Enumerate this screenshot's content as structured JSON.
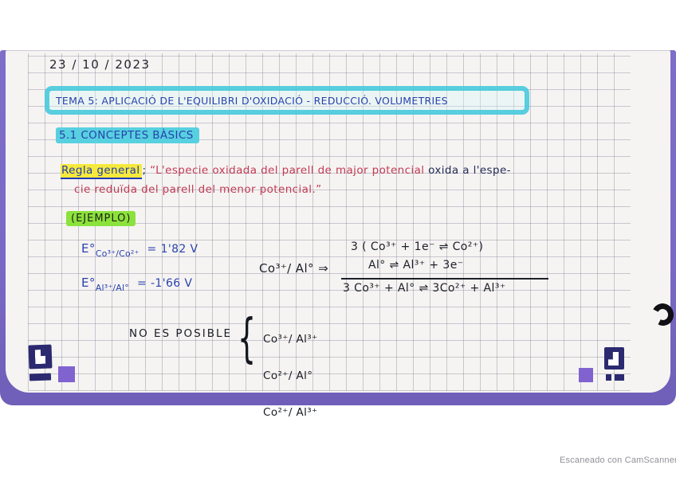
{
  "scan": {
    "date": "23 / 10 / 2023",
    "title": "TEMA 5: APLICACIÓ DE L'EQUILIBRI D'OXIDACIÓ - REDUCCIÓ. VOLUMETRIES",
    "section": "5.1 CONCEPTES BÀSICS",
    "rule": {
      "label": "Regla general",
      "separator": "; ",
      "quote_line1_red": "“L'especie oxidada del parell de major potencial ",
      "quote_line1_dark": "oxida a l'espe-",
      "quote_line2": "cie reduïda del parell del menor potencial.”"
    },
    "example_label": "(EJEMPLO)",
    "potentials": [
      {
        "prefix": "E°",
        "couple": "Co³⁺/Co²⁺",
        "value": "= 1'82 V"
      },
      {
        "prefix": "E°",
        "couple": "Al³⁺/Al°",
        "value": "= -1'66 V"
      }
    ],
    "reaction": {
      "couple": "Co³⁺/ Al° ⇒",
      "half1": "3 ( Co³⁺ + 1e⁻  ⇌  Co²⁺)",
      "half2": "Al°  ⇌  Al³⁺ + 3e⁻",
      "overall": "3 Co³⁺ + Al° ⇌ 3Co²⁺ + Al³⁺"
    },
    "not_possible": {
      "label": "NO ES POSIBLE",
      "brace": "{",
      "items": [
        "Co³⁺/ Al³⁺",
        "Co²⁺/ Al°",
        "Co²⁺/ Al³⁺"
      ]
    },
    "watermark": "Escaneado con CamScanner"
  },
  "colors": {
    "backdrop_purple": "#7a68c6",
    "marker_navy": "#2b2a70",
    "marker_purple_cell": "#8163cf",
    "highlight_cyan": "#3ec7db",
    "highlight_yellow": "#f6e93d",
    "highlight_green": "#8ce23c",
    "ink_blue": "#2742ad",
    "ink_red": "#c23b55",
    "ink_black": "#1c2029",
    "paper": "#f6f4f2"
  }
}
